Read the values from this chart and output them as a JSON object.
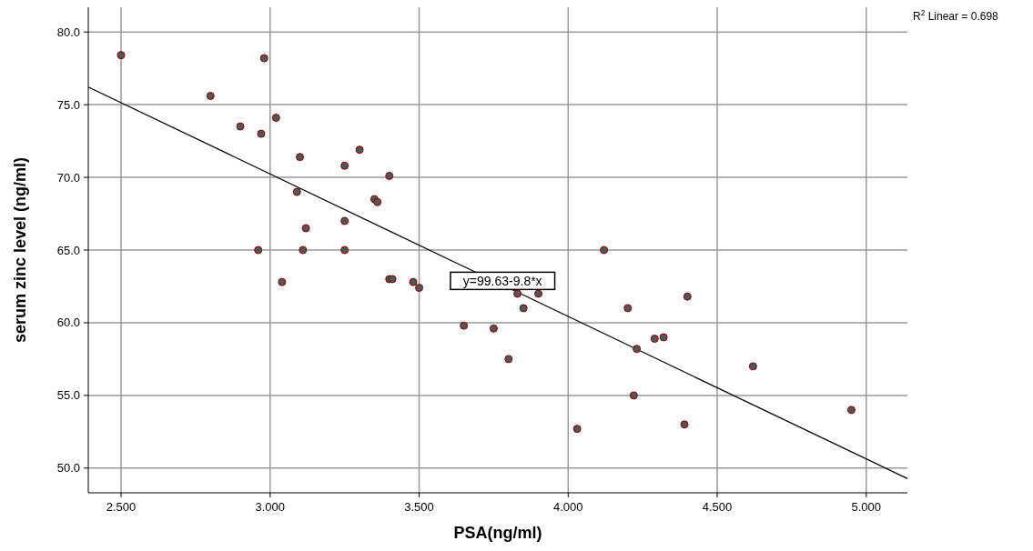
{
  "chart_data": {
    "type": "scatter",
    "xlabel": "PSA(ng/ml)",
    "ylabel": "serum zinc level (ng/ml)",
    "xlim": [
      2.39,
      5.138
    ],
    "ylim": [
      48.3,
      81.7
    ],
    "xticks": [
      {
        "value": 2.5,
        "label": "2.500"
      },
      {
        "value": 3,
        "label": "3.000"
      },
      {
        "value": 3.5,
        "label": "3.500"
      },
      {
        "value": 4,
        "label": "4.000"
      },
      {
        "value": 4.5,
        "label": "4.500"
      },
      {
        "value": 5,
        "label": "5.000"
      }
    ],
    "yticks": [
      {
        "value": 50,
        "label": "50.0"
      },
      {
        "value": 55,
        "label": "55.0"
      },
      {
        "value": 60,
        "label": "60.0"
      },
      {
        "value": 65,
        "label": "65.0"
      },
      {
        "value": 70,
        "label": "70.0"
      },
      {
        "value": 75,
        "label": "75.0"
      },
      {
        "value": 80,
        "label": "80.0"
      }
    ],
    "grid": true,
    "marker": "circle",
    "series": [
      {
        "color": "#555555",
        "x": [
          2.5,
          2.8,
          2.9,
          2.97,
          2.98,
          3.02,
          3.1,
          3.09,
          2.96,
          3.11,
          3.12,
          3.04,
          3.25,
          3.25,
          3.25,
          3.3,
          3.4,
          3.35,
          3.36,
          3.4,
          3.41,
          3.48,
          3.5,
          3.65,
          3.75,
          3.8,
          3.83,
          3.85,
          3.9,
          4.03,
          4.12,
          4.2,
          4.22,
          4.23,
          4.29,
          4.32,
          4.39,
          4.4,
          4.62,
          4.95
        ],
        "values": [
          78.4,
          75.6,
          73.5,
          73.0,
          78.2,
          74.1,
          71.4,
          69.0,
          65.0,
          65.0,
          66.5,
          62.8,
          67.0,
          70.8,
          65.0,
          71.9,
          70.1,
          68.5,
          68.3,
          63.0,
          63.0,
          62.8,
          62.4,
          59.8,
          59.6,
          57.5,
          62.0,
          61.0,
          62.0,
          52.7,
          65.0,
          61.0,
          55.0,
          58.2,
          58.9,
          59.0,
          53.0,
          61.8,
          57.0,
          54.0
        ]
      },
      {
        "type": "line",
        "color": "#000000",
        "marker": "none",
        "x": [
          2.39,
          5.138
        ],
        "values": [
          76.21,
          49.28
        ]
      }
    ],
    "annotations": [
      {
        "text": "y=99.63-9.8*x",
        "x": 3.78,
        "y": 62.6
      },
      "R$^{2}$ Linear = 0.698"
    ]
  }
}
